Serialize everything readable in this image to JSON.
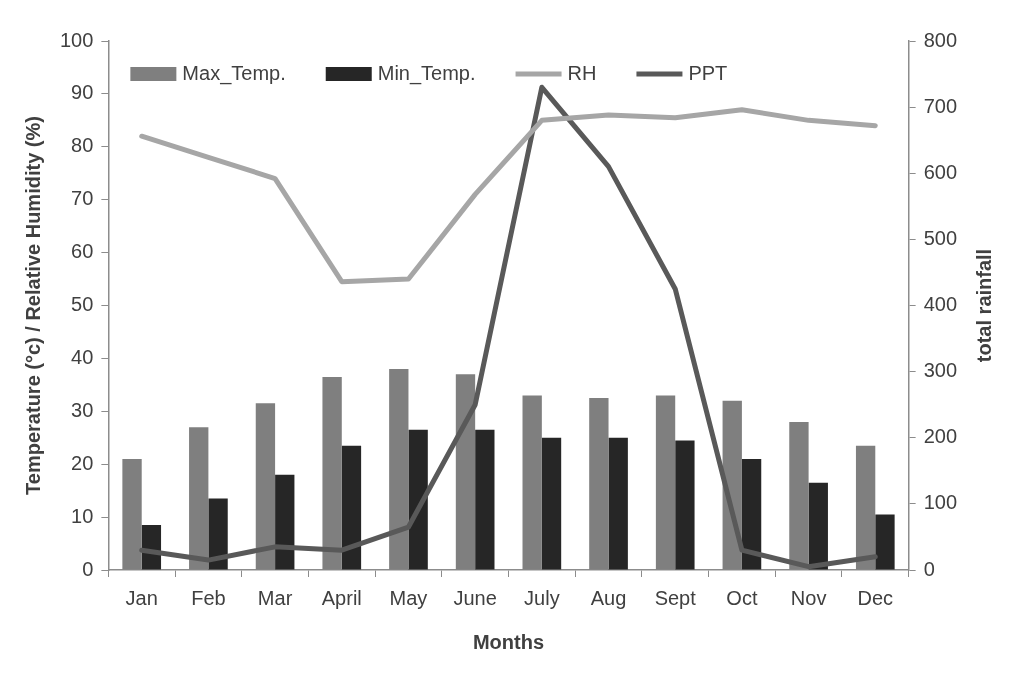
{
  "chart_data": {
    "type": "bar",
    "categories": [
      "Jan",
      "Feb",
      "Mar",
      "April",
      "May",
      "June",
      "July",
      "Aug",
      "Sept",
      "Oct",
      "Nov",
      "Dec"
    ],
    "xlabel": "Months",
    "ylabel": "Temperature (°c) / Relative Humidity (%)",
    "y2label": "total rainfall",
    "series": [
      {
        "name": "Max_Temp.",
        "color": "#7f7f7f",
        "values": [
          21,
          27,
          31.5,
          36.5,
          38,
          37,
          33,
          32.5,
          33,
          32,
          28,
          23.5
        ]
      },
      {
        "name": "Min_Temp.",
        "color": "#262626",
        "values": [
          8.5,
          13.5,
          18,
          23.5,
          26.5,
          26.5,
          25,
          25,
          24.5,
          21,
          16.5,
          10.5
        ]
      },
      {
        "name": "RH",
        "type": "line",
        "color": "#a6a6a6",
        "values": [
          82,
          78,
          74,
          54.5,
          55,
          71,
          85,
          86,
          85.5,
          87,
          85,
          84
        ]
      },
      {
        "name": "PPT",
        "type": "line",
        "axis": "y2",
        "color": "#595959",
        "values": [
          30,
          15,
          35,
          30,
          65,
          250,
          730,
          610,
          425,
          30,
          5,
          20
        ]
      }
    ],
    "ylim": [
      0,
      100
    ],
    "yticks": [
      0,
      10,
      20,
      30,
      40,
      50,
      60,
      70,
      80,
      90,
      100
    ],
    "y2lim": [
      0,
      800
    ],
    "y2ticks": [
      0,
      100,
      200,
      300,
      400,
      500,
      600,
      700,
      800
    ],
    "legend": "top left",
    "marker": "none"
  }
}
